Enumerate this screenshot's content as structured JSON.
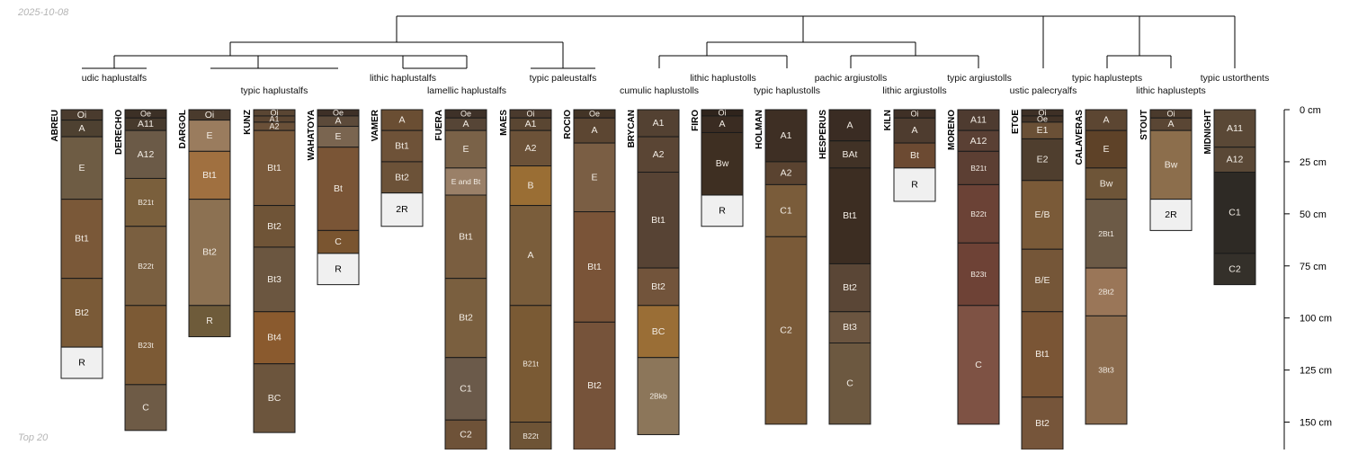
{
  "date": "2025-10-08",
  "footer": "Top 20",
  "colors": {
    "tree": "#000000",
    "outline": "#1a1a1a",
    "depth_axis": "#000000"
  },
  "depth_axis": {
    "unit": "cm",
    "ticks": [
      0,
      25,
      50,
      75,
      100,
      125,
      150
    ],
    "tick_labels": [
      "0 cm",
      "25 cm",
      "50 cm",
      "75 cm",
      "100 cm",
      "125 cm",
      "150 cm"
    ]
  },
  "subgroup_labels": [
    {
      "text": "udic haplustalfs",
      "row": 1
    },
    {
      "text": "typic haplustalfs",
      "row": 2
    },
    {
      "text": "lithic haplustalfs",
      "row": 1
    },
    {
      "text": "lamellic haplustalfs",
      "row": 2
    },
    {
      "text": "typic paleustalfs",
      "row": 1
    },
    {
      "text": "cumulic haplustolls",
      "row": 2
    },
    {
      "text": "lithic haplustolls",
      "row": 1
    },
    {
      "text": "typic haplustolls",
      "row": 2
    },
    {
      "text": "pachic argiustolls",
      "row": 1
    },
    {
      "text": "lithic argiustolls",
      "row": 2
    },
    {
      "text": "typic argiustolls",
      "row": 1
    },
    {
      "text": "ustic palecryalfs",
      "row": 2
    },
    {
      "text": "typic haplustepts",
      "row": 1
    },
    {
      "text": "lithic haplustepts",
      "row": 2
    },
    {
      "text": "typic ustorthents",
      "row": 1
    }
  ],
  "profiles": [
    {
      "name": "ABREU",
      "horizons": [
        {
          "name": "Oi",
          "top": 0,
          "bottom": 5,
          "color": "#4a3b2e"
        },
        {
          "name": "A",
          "top": 5,
          "bottom": 13,
          "color": "#4e4131"
        },
        {
          "name": "E",
          "top": 13,
          "bottom": 43,
          "color": "#6e5c44"
        },
        {
          "name": "Bt1",
          "top": 43,
          "bottom": 81,
          "color": "#7a5838"
        },
        {
          "name": "Bt2",
          "top": 81,
          "bottom": 114,
          "color": "#7a5a37"
        },
        {
          "name": "R",
          "top": 114,
          "bottom": 129,
          "color": "#f0f0f0"
        }
      ]
    },
    {
      "name": "DERECHO",
      "horizons": [
        {
          "name": "Oe",
          "top": 0,
          "bottom": 4,
          "color": "#3c3026"
        },
        {
          "name": "A11",
          "top": 4,
          "bottom": 10,
          "color": "#473a2d"
        },
        {
          "name": "A12",
          "top": 10,
          "bottom": 33,
          "color": "#6b5a47"
        },
        {
          "name": "B21t",
          "top": 33,
          "bottom": 56,
          "color": "#7a5f3c"
        },
        {
          "name": "B22t",
          "top": 56,
          "bottom": 94,
          "color": "#7a5f40"
        },
        {
          "name": "B23t",
          "top": 94,
          "bottom": 132,
          "color": "#7c5a35"
        },
        {
          "name": "C",
          "top": 132,
          "bottom": 154,
          "color": "#6e5b46"
        }
      ]
    },
    {
      "name": "DARGOL",
      "horizons": [
        {
          "name": "Oi",
          "top": 0,
          "bottom": 5,
          "color": "#4a3b2d"
        },
        {
          "name": "E",
          "top": 5,
          "bottom": 20,
          "color": "#9a7c5e"
        },
        {
          "name": "Bt1",
          "top": 20,
          "bottom": 43,
          "color": "#a07040"
        },
        {
          "name": "Bt2",
          "top": 43,
          "bottom": 94,
          "color": "#8c7152"
        },
        {
          "name": "R",
          "top": 94,
          "bottom": 109,
          "color": "#6e5b3a"
        }
      ]
    },
    {
      "name": "KUNZ",
      "horizons": [
        {
          "name": "Oi",
          "top": 0,
          "bottom": 3,
          "color": "#5a4633"
        },
        {
          "name": "A1",
          "top": 3,
          "bottom": 6,
          "color": "#5c4632"
        },
        {
          "name": "A2",
          "top": 6,
          "bottom": 10,
          "color": "#6a5038"
        },
        {
          "name": "Bt1",
          "top": 10,
          "bottom": 46,
          "color": "#7a5a3b"
        },
        {
          "name": "Bt2",
          "top": 46,
          "bottom": 66,
          "color": "#6f5437"
        },
        {
          "name": "Bt3",
          "top": 66,
          "bottom": 97,
          "color": "#6b5640"
        },
        {
          "name": "Bt4",
          "top": 97,
          "bottom": 122,
          "color": "#8a5a2e"
        },
        {
          "name": "BC",
          "top": 122,
          "bottom": 155,
          "color": "#6c553d"
        }
      ]
    },
    {
      "name": "WAHATOYA",
      "horizons": [
        {
          "name": "Oe",
          "top": 0,
          "bottom": 3,
          "color": "#3e3027"
        },
        {
          "name": "A",
          "top": 3,
          "bottom": 8,
          "color": "#5c4a3a"
        },
        {
          "name": "E",
          "top": 8,
          "bottom": 18,
          "color": "#7a6550"
        },
        {
          "name": "Bt",
          "top": 18,
          "bottom": 58,
          "color": "#7a5536"
        },
        {
          "name": "C",
          "top": 58,
          "bottom": 69,
          "color": "#7a5530"
        },
        {
          "name": "R",
          "top": 69,
          "bottom": 84,
          "color": "#f0f0f0"
        }
      ]
    },
    {
      "name": "VAMER",
      "horizons": [
        {
          "name": "A",
          "top": 0,
          "bottom": 10,
          "color": "#6a4e33"
        },
        {
          "name": "Bt1",
          "top": 10,
          "bottom": 25,
          "color": "#6e5238"
        },
        {
          "name": "Bt2",
          "top": 25,
          "bottom": 40,
          "color": "#6c5238"
        },
        {
          "name": "2R",
          "top": 40,
          "bottom": 56,
          "color": "#f0f0f0"
        }
      ]
    },
    {
      "name": "FUERA",
      "horizons": [
        {
          "name": "Oe",
          "top": 0,
          "bottom": 4,
          "color": "#3e3128"
        },
        {
          "name": "A",
          "top": 4,
          "bottom": 10,
          "color": "#564536"
        },
        {
          "name": "E",
          "top": 10,
          "bottom": 28,
          "color": "#7a6248"
        },
        {
          "name": "E and Bt",
          "top": 28,
          "bottom": 41,
          "color": "#9a8068"
        },
        {
          "name": "Bt1",
          "top": 41,
          "bottom": 81,
          "color": "#7a5e40"
        },
        {
          "name": "Bt2",
          "top": 81,
          "bottom": 119,
          "color": "#7a5f3f"
        },
        {
          "name": "C1",
          "top": 119,
          "bottom": 149,
          "color": "#6b5a4a"
        },
        {
          "name": "C2",
          "top": 149,
          "bottom": 165,
          "color": "#6e5238"
        }
      ]
    },
    {
      "name": "MAES",
      "horizons": [
        {
          "name": "Oi",
          "top": 0,
          "bottom": 4,
          "color": "#4a3a2d"
        },
        {
          "name": "A1",
          "top": 4,
          "bottom": 10,
          "color": "#5a4632"
        },
        {
          "name": "A2",
          "top": 10,
          "bottom": 27,
          "color": "#6c5238"
        },
        {
          "name": "B",
          "top": 27,
          "bottom": 46,
          "color": "#9a6e34"
        },
        {
          "name": "A",
          "top": 46,
          "bottom": 94,
          "color": "#7a5d3b"
        },
        {
          "name": "B21t",
          "top": 94,
          "bottom": 150,
          "color": "#7a5a34"
        },
        {
          "name": "B22t",
          "top": 150,
          "bottom": 165,
          "color": "#6e5436"
        }
      ]
    },
    {
      "name": "ROCIO",
      "horizons": [
        {
          "name": "Oe",
          "top": 0,
          "bottom": 4,
          "color": "#433426"
        },
        {
          "name": "A",
          "top": 4,
          "bottom": 16,
          "color": "#5c4632"
        },
        {
          "name": "E",
          "top": 16,
          "bottom": 49,
          "color": "#7a5e44"
        },
        {
          "name": "Bt1",
          "top": 49,
          "bottom": 102,
          "color": "#7a5438"
        },
        {
          "name": "Bt2",
          "top": 102,
          "bottom": 165,
          "color": "#76533a"
        }
      ]
    },
    {
      "name": "BRYCAN",
      "horizons": [
        {
          "name": "A1",
          "top": 0,
          "bottom": 13,
          "color": "#534132"
        },
        {
          "name": "A2",
          "top": 13,
          "bottom": 30,
          "color": "#5a4534"
        },
        {
          "name": "Bt1",
          "top": 30,
          "bottom": 76,
          "color": "#574334"
        },
        {
          "name": "Bt2",
          "top": 76,
          "bottom": 94,
          "color": "#72543b"
        },
        {
          "name": "BC",
          "top": 94,
          "bottom": 119,
          "color": "#9a6e36"
        },
        {
          "name": "2Bkb",
          "top": 119,
          "bottom": 156,
          "color": "#8c765a"
        }
      ]
    },
    {
      "name": "FIRO",
      "horizons": [
        {
          "name": "Oi",
          "top": 0,
          "bottom": 3,
          "color": "#2f241c"
        },
        {
          "name": "A",
          "top": 3,
          "bottom": 11,
          "color": "#3a2c22"
        },
        {
          "name": "Bw",
          "top": 11,
          "bottom": 41,
          "color": "#3e2f22"
        },
        {
          "name": "R",
          "top": 41,
          "bottom": 56,
          "color": "#f0f0f0"
        }
      ]
    },
    {
      "name": "HOLMAN",
      "horizons": [
        {
          "name": "A1",
          "top": 0,
          "bottom": 25,
          "color": "#3e2f24"
        },
        {
          "name": "A2",
          "top": 25,
          "bottom": 36,
          "color": "#5a4330"
        },
        {
          "name": "C1",
          "top": 36,
          "bottom": 61,
          "color": "#7a5c3a"
        },
        {
          "name": "C2",
          "top": 61,
          "bottom": 151,
          "color": "#7a5a38"
        }
      ]
    },
    {
      "name": "HESPERUS",
      "horizons": [
        {
          "name": "A",
          "top": 0,
          "bottom": 15,
          "color": "#3a2c23"
        },
        {
          "name": "BAt",
          "top": 15,
          "bottom": 28,
          "color": "#413226"
        },
        {
          "name": "Bt1",
          "top": 28,
          "bottom": 74,
          "color": "#3c2d22"
        },
        {
          "name": "Bt2",
          "top": 74,
          "bottom": 97,
          "color": "#5a4636"
        },
        {
          "name": "Bt3",
          "top": 97,
          "bottom": 112,
          "color": "#6b5540"
        },
        {
          "name": "C",
          "top": 112,
          "bottom": 151,
          "color": "#6c5840"
        }
      ]
    },
    {
      "name": "KILN",
      "horizons": [
        {
          "name": "Oi",
          "top": 0,
          "bottom": 4,
          "color": "#3f3026"
        },
        {
          "name": "A",
          "top": 4,
          "bottom": 16,
          "color": "#4e3c2f"
        },
        {
          "name": "Bt",
          "top": 16,
          "bottom": 28,
          "color": "#6c4a32"
        },
        {
          "name": "R",
          "top": 28,
          "bottom": 44,
          "color": "#f0f0f0"
        }
      ]
    },
    {
      "name": "MORENO",
      "horizons": [
        {
          "name": "A11",
          "top": 0,
          "bottom": 10,
          "color": "#4e3b30"
        },
        {
          "name": "A12",
          "top": 10,
          "bottom": 20,
          "color": "#5a4034"
        },
        {
          "name": "B21t",
          "top": 20,
          "bottom": 36,
          "color": "#5c3f33"
        },
        {
          "name": "B22t",
          "top": 36,
          "bottom": 64,
          "color": "#6b4236"
        },
        {
          "name": "B23t",
          "top": 64,
          "bottom": 94,
          "color": "#6e4236"
        },
        {
          "name": "C",
          "top": 94,
          "bottom": 151,
          "color": "#7e5244"
        }
      ]
    },
    {
      "name": "ETOE",
      "horizons": [
        {
          "name": "Oi",
          "top": 0,
          "bottom": 3,
          "color": "#3e3026"
        },
        {
          "name": "Oe",
          "top": 3,
          "bottom": 6,
          "color": "#423327"
        },
        {
          "name": "E1",
          "top": 6,
          "bottom": 14,
          "color": "#6a5036"
        },
        {
          "name": "E2",
          "top": 14,
          "bottom": 34,
          "color": "#4f3e2e"
        },
        {
          "name": "E/B",
          "top": 34,
          "bottom": 67,
          "color": "#7a5a38"
        },
        {
          "name": "B/E",
          "top": 67,
          "bottom": 97,
          "color": "#755638"
        },
        {
          "name": "Bt1",
          "top": 97,
          "bottom": 138,
          "color": "#7a5535"
        },
        {
          "name": "Bt2",
          "top": 138,
          "bottom": 165,
          "color": "#76553a"
        }
      ]
    },
    {
      "name": "CALAVERAS",
      "horizons": [
        {
          "name": "A",
          "top": 0,
          "bottom": 10,
          "color": "#5c4632"
        },
        {
          "name": "E",
          "top": 10,
          "bottom": 28,
          "color": "#5e4228"
        },
        {
          "name": "Bw",
          "top": 28,
          "bottom": 43,
          "color": "#6e5538"
        },
        {
          "name": "2Bt1",
          "top": 43,
          "bottom": 76,
          "color": "#6c5a46"
        },
        {
          "name": "2Bt2",
          "top": 76,
          "bottom": 99,
          "color": "#9a7658"
        },
        {
          "name": "3Bt3",
          "top": 99,
          "bottom": 151,
          "color": "#8a6a4c"
        }
      ]
    },
    {
      "name": "STOUT",
      "horizons": [
        {
          "name": "Oi",
          "top": 0,
          "bottom": 4,
          "color": "#4a3a2c"
        },
        {
          "name": "A",
          "top": 4,
          "bottom": 10,
          "color": "#5a4634"
        },
        {
          "name": "Bw",
          "top": 10,
          "bottom": 43,
          "color": "#8c6e4c"
        },
        {
          "name": "2R",
          "top": 43,
          "bottom": 58,
          "color": "#f0f0f0"
        }
      ]
    },
    {
      "name": "MIDNIGHT",
      "horizons": [
        {
          "name": "A11",
          "top": 0,
          "bottom": 18,
          "color": "#5a4836"
        },
        {
          "name": "A12",
          "top": 18,
          "bottom": 30,
          "color": "#5a4836"
        },
        {
          "name": "C1",
          "top": 30,
          "bottom": 69,
          "color": "#2e2a25"
        },
        {
          "name": "C2",
          "top": 69,
          "bottom": 84,
          "color": "#34302a"
        }
      ]
    }
  ]
}
